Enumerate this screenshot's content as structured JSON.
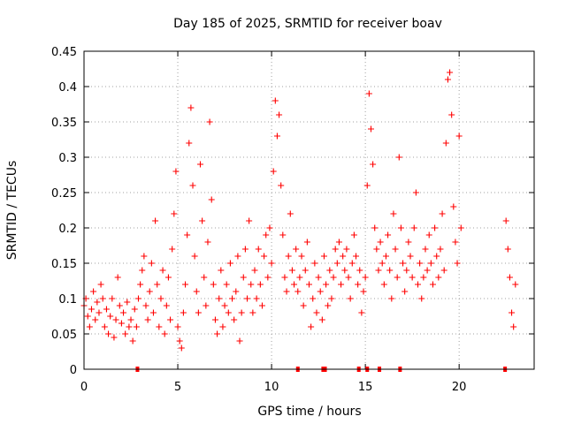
{
  "chart_data": {
    "type": "scatter",
    "title": "Day 185 of 2025, SRMTID for receiver boav",
    "xlabel": "GPS time / hours",
    "ylabel": "SRMTID / TECUs",
    "xlim": [
      0,
      24
    ],
    "ylim": [
      0,
      0.45
    ],
    "xticks": [
      0,
      5,
      10,
      15,
      20
    ],
    "xtick_labels": [
      "0",
      "5",
      "10",
      "15",
      "20"
    ],
    "yticks": [
      0,
      0.05,
      0.1,
      0.15,
      0.2,
      0.25,
      0.3,
      0.35,
      0.4,
      0.45
    ],
    "ytick_labels": [
      "0",
      "0.05",
      "0.1",
      "0.15",
      "0.2",
      "0.25",
      "0.3",
      "0.35",
      "0.4",
      "0.45"
    ],
    "grid": true,
    "marker": "+",
    "color": "#ff0000",
    "series": [
      {
        "name": "SRMTID",
        "points": [
          [
            0.0,
            0.09
          ],
          [
            0.1,
            0.1
          ],
          [
            0.2,
            0.075
          ],
          [
            0.3,
            0.06
          ],
          [
            0.4,
            0.085
          ],
          [
            0.5,
            0.11
          ],
          [
            0.6,
            0.07
          ],
          [
            0.7,
            0.095
          ],
          [
            0.8,
            0.08
          ],
          [
            0.9,
            0.12
          ],
          [
            1.0,
            0.1
          ],
          [
            1.1,
            0.06
          ],
          [
            1.2,
            0.085
          ],
          [
            1.3,
            0.05
          ],
          [
            1.4,
            0.075
          ],
          [
            1.5,
            0.1
          ],
          [
            1.6,
            0.045
          ],
          [
            1.7,
            0.07
          ],
          [
            1.8,
            0.13
          ],
          [
            1.9,
            0.09
          ],
          [
            2.0,
            0.065
          ],
          [
            2.1,
            0.08
          ],
          [
            2.2,
            0.05
          ],
          [
            2.3,
            0.095
          ],
          [
            2.4,
            0.06
          ],
          [
            2.5,
            0.07
          ],
          [
            2.6,
            0.04
          ],
          [
            2.7,
            0.085
          ],
          [
            2.8,
            0.06
          ],
          [
            2.9,
            0.1
          ],
          [
            3.0,
            0.12
          ],
          [
            3.1,
            0.14
          ],
          [
            3.2,
            0.16
          ],
          [
            3.3,
            0.09
          ],
          [
            3.4,
            0.07
          ],
          [
            3.5,
            0.11
          ],
          [
            3.6,
            0.15
          ],
          [
            3.7,
            0.08
          ],
          [
            3.8,
            0.21
          ],
          [
            3.9,
            0.12
          ],
          [
            4.0,
            0.06
          ],
          [
            4.1,
            0.1
          ],
          [
            4.2,
            0.14
          ],
          [
            4.3,
            0.05
          ],
          [
            4.4,
            0.09
          ],
          [
            4.5,
            0.13
          ],
          [
            4.6,
            0.07
          ],
          [
            4.7,
            0.17
          ],
          [
            4.8,
            0.22
          ],
          [
            4.9,
            0.28
          ],
          [
            5.0,
            0.06
          ],
          [
            5.1,
            0.04
          ],
          [
            5.2,
            0.03
          ],
          [
            5.3,
            0.08
          ],
          [
            5.4,
            0.12
          ],
          [
            5.5,
            0.19
          ],
          [
            5.6,
            0.32
          ],
          [
            5.7,
            0.37
          ],
          [
            5.8,
            0.26
          ],
          [
            5.9,
            0.16
          ],
          [
            6.0,
            0.11
          ],
          [
            6.1,
            0.08
          ],
          [
            6.2,
            0.29
          ],
          [
            6.3,
            0.21
          ],
          [
            6.4,
            0.13
          ],
          [
            6.5,
            0.09
          ],
          [
            6.6,
            0.18
          ],
          [
            6.7,
            0.35
          ],
          [
            6.8,
            0.24
          ],
          [
            6.9,
            0.12
          ],
          [
            7.0,
            0.07
          ],
          [
            7.1,
            0.05
          ],
          [
            7.2,
            0.1
          ],
          [
            7.3,
            0.14
          ],
          [
            7.4,
            0.06
          ],
          [
            7.5,
            0.09
          ],
          [
            7.6,
            0.12
          ],
          [
            7.7,
            0.08
          ],
          [
            7.8,
            0.15
          ],
          [
            7.9,
            0.1
          ],
          [
            8.0,
            0.07
          ],
          [
            8.1,
            0.11
          ],
          [
            8.2,
            0.16
          ],
          [
            8.3,
            0.04
          ],
          [
            8.4,
            0.08
          ],
          [
            8.5,
            0.13
          ],
          [
            8.6,
            0.17
          ],
          [
            8.7,
            0.1
          ],
          [
            8.8,
            0.21
          ],
          [
            8.9,
            0.12
          ],
          [
            9.0,
            0.08
          ],
          [
            9.1,
            0.14
          ],
          [
            9.2,
            0.1
          ],
          [
            9.3,
            0.17
          ],
          [
            9.4,
            0.12
          ],
          [
            9.5,
            0.09
          ],
          [
            9.6,
            0.16
          ],
          [
            9.7,
            0.19
          ],
          [
            9.8,
            0.13
          ],
          [
            9.9,
            0.2
          ],
          [
            10.0,
            0.15
          ],
          [
            10.1,
            0.28
          ],
          [
            10.2,
            0.38
          ],
          [
            10.3,
            0.33
          ],
          [
            10.4,
            0.36
          ],
          [
            10.5,
            0.26
          ],
          [
            10.6,
            0.19
          ],
          [
            10.7,
            0.13
          ],
          [
            10.8,
            0.11
          ],
          [
            10.9,
            0.16
          ],
          [
            11.0,
            0.22
          ],
          [
            11.1,
            0.14
          ],
          [
            11.2,
            0.12
          ],
          [
            11.3,
            0.17
          ],
          [
            11.4,
            0.11
          ],
          [
            11.5,
            0.13
          ],
          [
            11.6,
            0.16
          ],
          [
            11.7,
            0.09
          ],
          [
            11.8,
            0.14
          ],
          [
            11.9,
            0.18
          ],
          [
            12.0,
            0.12
          ],
          [
            12.1,
            0.06
          ],
          [
            12.2,
            0.1
          ],
          [
            12.3,
            0.15
          ],
          [
            12.4,
            0.08
          ],
          [
            12.5,
            0.13
          ],
          [
            12.6,
            0.11
          ],
          [
            12.7,
            0.07
          ],
          [
            12.8,
            0.16
          ],
          [
            12.9,
            0.12
          ],
          [
            13.0,
            0.09
          ],
          [
            13.1,
            0.14
          ],
          [
            13.2,
            0.1
          ],
          [
            13.3,
            0.13
          ],
          [
            13.4,
            0.17
          ],
          [
            13.5,
            0.15
          ],
          [
            13.6,
            0.18
          ],
          [
            13.7,
            0.12
          ],
          [
            13.8,
            0.16
          ],
          [
            13.9,
            0.14
          ],
          [
            14.0,
            0.17
          ],
          [
            14.1,
            0.13
          ],
          [
            14.2,
            0.1
          ],
          [
            14.3,
            0.15
          ],
          [
            14.4,
            0.19
          ],
          [
            14.5,
            0.16
          ],
          [
            14.6,
            0.12
          ],
          [
            14.7,
            0.14
          ],
          [
            14.8,
            0.08
          ],
          [
            14.9,
            0.11
          ],
          [
            15.0,
            0.13
          ],
          [
            15.1,
            0.26
          ],
          [
            15.2,
            0.39
          ],
          [
            15.3,
            0.34
          ],
          [
            15.4,
            0.29
          ],
          [
            15.5,
            0.2
          ],
          [
            15.6,
            0.17
          ],
          [
            15.7,
            0.14
          ],
          [
            15.8,
            0.18
          ],
          [
            15.9,
            0.15
          ],
          [
            16.0,
            0.12
          ],
          [
            16.1,
            0.16
          ],
          [
            16.2,
            0.19
          ],
          [
            16.3,
            0.14
          ],
          [
            16.4,
            0.1
          ],
          [
            16.5,
            0.22
          ],
          [
            16.6,
            0.17
          ],
          [
            16.7,
            0.13
          ],
          [
            16.8,
            0.3
          ],
          [
            16.9,
            0.2
          ],
          [
            17.0,
            0.15
          ],
          [
            17.1,
            0.11
          ],
          [
            17.2,
            0.14
          ],
          [
            17.3,
            0.18
          ],
          [
            17.4,
            0.16
          ],
          [
            17.5,
            0.13
          ],
          [
            17.6,
            0.2
          ],
          [
            17.7,
            0.25
          ],
          [
            17.8,
            0.12
          ],
          [
            17.9,
            0.15
          ],
          [
            18.0,
            0.1
          ],
          [
            18.1,
            0.13
          ],
          [
            18.2,
            0.17
          ],
          [
            18.3,
            0.14
          ],
          [
            18.4,
            0.19
          ],
          [
            18.5,
            0.15
          ],
          [
            18.6,
            0.12
          ],
          [
            18.7,
            0.2
          ],
          [
            18.8,
            0.16
          ],
          [
            18.9,
            0.13
          ],
          [
            19.0,
            0.17
          ],
          [
            19.1,
            0.22
          ],
          [
            19.2,
            0.14
          ],
          [
            19.3,
            0.32
          ],
          [
            19.4,
            0.41
          ],
          [
            19.5,
            0.42
          ],
          [
            19.6,
            0.36
          ],
          [
            19.7,
            0.23
          ],
          [
            19.8,
            0.18
          ],
          [
            19.9,
            0.15
          ],
          [
            20.0,
            0.33
          ],
          [
            20.1,
            0.2
          ],
          [
            22.5,
            0.21
          ],
          [
            22.6,
            0.17
          ],
          [
            22.7,
            0.13
          ],
          [
            22.8,
            0.08
          ],
          [
            22.9,
            0.06
          ],
          [
            23.0,
            0.12
          ]
        ]
      }
    ],
    "baseline_markers": [
      2.85,
      11.4,
      12.75,
      12.85,
      14.65,
      15.1,
      15.75,
      16.85,
      22.45
    ]
  }
}
